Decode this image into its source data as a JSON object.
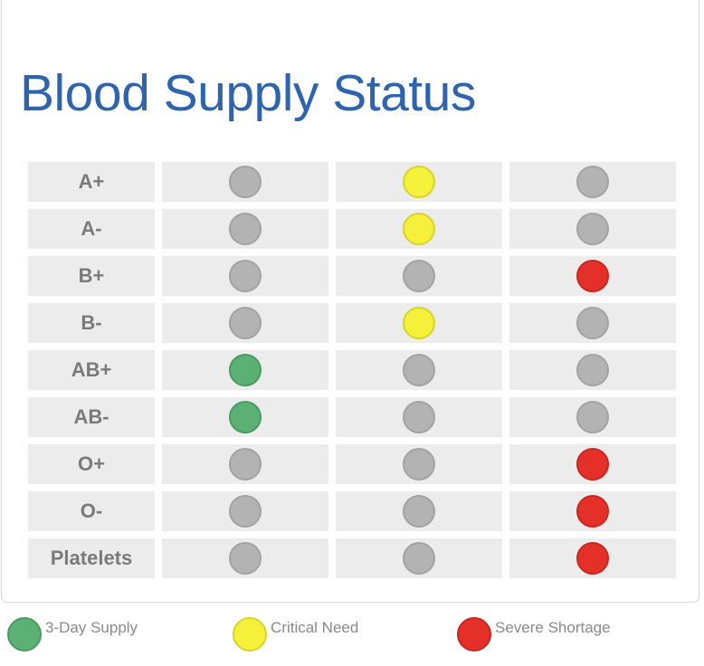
{
  "title": "Blood Supply Status",
  "colors": {
    "green": "#5bb074",
    "yellow": "#f5f03a",
    "red": "#e5302a",
    "gray": "#b3b3b3"
  },
  "rows": [
    {
      "label": "A+",
      "status": [
        "gray",
        "yellow",
        "gray"
      ]
    },
    {
      "label": "A-",
      "status": [
        "gray",
        "yellow",
        "gray"
      ]
    },
    {
      "label": "B+",
      "status": [
        "gray",
        "gray",
        "red"
      ]
    },
    {
      "label": "B-",
      "status": [
        "gray",
        "yellow",
        "gray"
      ]
    },
    {
      "label": "AB+",
      "status": [
        "green",
        "gray",
        "gray"
      ]
    },
    {
      "label": "AB-",
      "status": [
        "green",
        "gray",
        "gray"
      ]
    },
    {
      "label": "O+",
      "status": [
        "gray",
        "gray",
        "red"
      ]
    },
    {
      "label": "O-",
      "status": [
        "gray",
        "gray",
        "red"
      ]
    },
    {
      "label": "Platelets",
      "status": [
        "gray",
        "gray",
        "red"
      ]
    }
  ],
  "legend": [
    {
      "color": "green",
      "label": "3-Day Supply"
    },
    {
      "color": "yellow",
      "label": "Critical Need"
    },
    {
      "color": "red",
      "label": "Severe Shortage"
    }
  ]
}
